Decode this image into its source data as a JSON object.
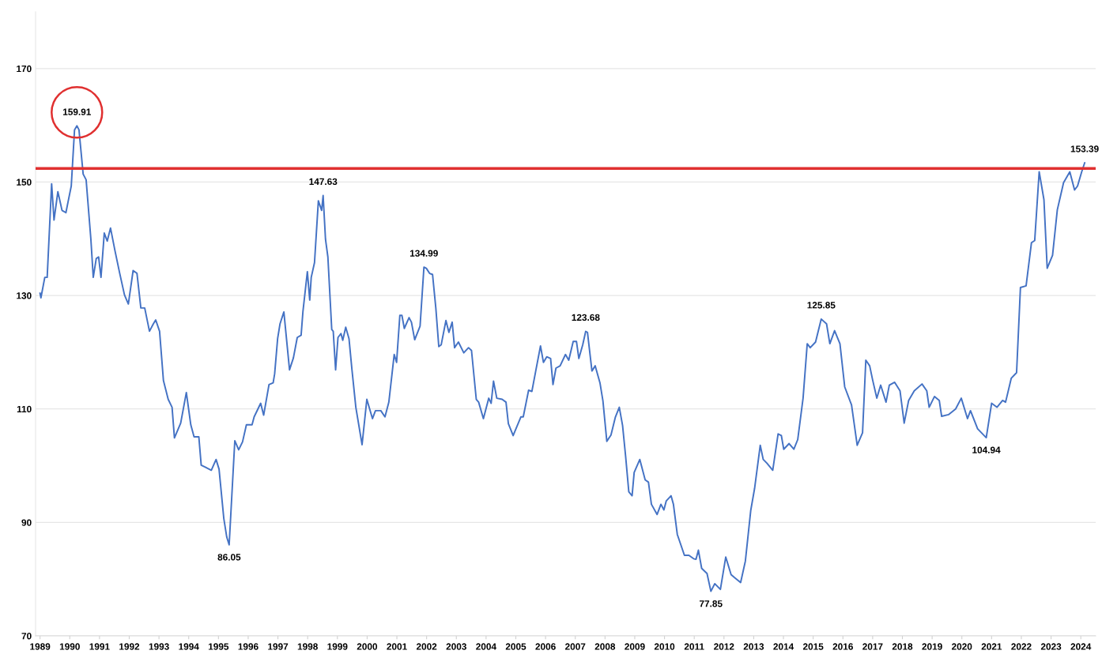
{
  "chart_data": {
    "type": "line",
    "xlim": [
      1988.85,
      2024.5
    ],
    "ylim": [
      70,
      180
    ],
    "xticks": [
      1989,
      1990,
      1991,
      1992,
      1993,
      1994,
      1995,
      1996,
      1997,
      1998,
      1999,
      2000,
      2001,
      2002,
      2003,
      2004,
      2005,
      2006,
      2007,
      2008,
      2009,
      2010,
      2011,
      2012,
      2013,
      2014,
      2015,
      2016,
      2017,
      2018,
      2019,
      2020,
      2021,
      2022,
      2023,
      2024
    ],
    "yticks": [
      70,
      90,
      110,
      130,
      150,
      170
    ],
    "grid": "y",
    "marker": "none",
    "line_style": "solid",
    "series": [
      {
        "color": "#4472c4",
        "x": [
          1989.0,
          1989.03,
          1989.16,
          1989.24,
          1989.39,
          1989.47,
          1989.6,
          1989.74,
          1989.87,
          1989.95,
          1990.05,
          1990.16,
          1990.24,
          1990.31,
          1990.45,
          1990.55,
          1990.71,
          1990.79,
          1990.89,
          1990.97,
          1991.05,
          1991.16,
          1991.26,
          1991.37,
          1991.52,
          1991.68,
          1991.84,
          1991.97,
          1992.13,
          1992.26,
          1992.39,
          1992.52,
          1992.68,
          1992.81,
          1992.89,
          1993.02,
          1993.15,
          1993.31,
          1993.44,
          1993.52,
          1993.73,
          1993.92,
          1994.07,
          1994.18,
          1994.34,
          1994.42,
          1994.57,
          1994.76,
          1994.92,
          1995.02,
          1995.18,
          1995.28,
          1995.36,
          1995.55,
          1995.68,
          1995.81,
          1995.94,
          1996.13,
          1996.2,
          1996.42,
          1996.52,
          1996.7,
          1996.84,
          1996.89,
          1996.99,
          1997.07,
          1997.2,
          1997.39,
          1997.52,
          1997.65,
          1997.78,
          1997.84,
          1997.99,
          1998.07,
          1998.12,
          1998.23,
          1998.36,
          1998.47,
          1998.52,
          1998.6,
          1998.68,
          1998.81,
          1998.86,
          1998.94,
          1999.02,
          1999.12,
          1999.18,
          1999.28,
          1999.39,
          1999.49,
          1999.62,
          1999.83,
          1999.99,
          2000.18,
          2000.28,
          2000.46,
          2000.6,
          2000.73,
          2000.91,
          2000.99,
          2001.1,
          2001.17,
          2001.25,
          2001.41,
          2001.49,
          2001.6,
          2001.78,
          2001.91,
          2001.99,
          2002.1,
          2002.2,
          2002.31,
          2002.41,
          2002.49,
          2002.65,
          2002.75,
          2002.86,
          2002.94,
          2003.07,
          2003.25,
          2003.41,
          2003.51,
          2003.67,
          2003.75,
          2003.91,
          2004.09,
          2004.17,
          2004.25,
          2004.36,
          2004.54,
          2004.67,
          2004.75,
          2004.91,
          2005.17,
          2005.25,
          2005.43,
          2005.54,
          2005.67,
          2005.83,
          2005.93,
          2006.04,
          2006.17,
          2006.25,
          2006.35,
          2006.49,
          2006.67,
          2006.78,
          2006.93,
          2007.04,
          2007.12,
          2007.25,
          2007.35,
          2007.41,
          2007.56,
          2007.67,
          2007.83,
          2007.93,
          2008.06,
          2008.2,
          2008.35,
          2008.48,
          2008.59,
          2008.69,
          2008.8,
          2008.91,
          2008.98,
          2009.17,
          2009.35,
          2009.46,
          2009.56,
          2009.75,
          2009.88,
          2009.98,
          2010.06,
          2010.22,
          2010.3,
          2010.43,
          2010.67,
          2010.82,
          2010.98,
          2011.06,
          2011.14,
          2011.25,
          2011.43,
          2011.56,
          2011.69,
          2011.88,
          2012.06,
          2012.24,
          2012.35,
          2012.56,
          2012.72,
          2012.9,
          2013.03,
          2013.22,
          2013.32,
          2013.45,
          2013.64,
          2013.82,
          2013.93,
          2014.01,
          2014.19,
          2014.35,
          2014.48,
          2014.66,
          2014.8,
          2014.9,
          2015.08,
          2015.27,
          2015.45,
          2015.56,
          2015.72,
          2015.9,
          2016.06,
          2016.29,
          2016.48,
          2016.66,
          2016.77,
          2016.9,
          2017.0,
          2017.14,
          2017.27,
          2017.45,
          2017.56,
          2017.74,
          2017.92,
          2018.06,
          2018.21,
          2018.4,
          2018.66,
          2018.82,
          2018.9,
          2019.08,
          2019.24,
          2019.32,
          2019.55,
          2019.79,
          2019.98,
          2020.19,
          2020.29,
          2020.53,
          2020.82,
          2021.0,
          2021.18,
          2021.37,
          2021.47,
          2021.66,
          2021.84,
          2021.97,
          2022.16,
          2022.34,
          2022.45,
          2022.6,
          2022.76,
          2022.87,
          2023.05,
          2023.21,
          2023.42,
          2023.63,
          2023.79,
          2023.89,
          2024.03,
          2024.13
        ],
        "values": [
          130.4,
          129.6,
          133.2,
          133.2,
          149.7,
          143.3,
          148.3,
          145.0,
          144.6,
          146.7,
          149.3,
          159.2,
          159.91,
          159.2,
          151.4,
          150.4,
          139.9,
          133.2,
          136.5,
          136.8,
          133.2,
          141.0,
          139.6,
          141.9,
          137.9,
          133.9,
          130.1,
          128.5,
          134.4,
          133.9,
          127.8,
          127.8,
          123.7,
          125.0,
          125.7,
          123.7,
          115.0,
          111.7,
          110.3,
          104.9,
          107.5,
          112.9,
          107.2,
          105.1,
          105.1,
          100.1,
          99.7,
          99.2,
          101.1,
          99.4,
          90.7,
          87.4,
          86.05,
          104.4,
          102.8,
          104.2,
          107.2,
          107.2,
          108.6,
          111.0,
          108.9,
          114.3,
          114.6,
          116.2,
          122.4,
          125.0,
          127.1,
          116.9,
          119.0,
          122.6,
          123.0,
          127.1,
          134.2,
          129.2,
          133.2,
          135.8,
          146.7,
          145.0,
          147.63,
          139.9,
          136.8,
          124.0,
          123.7,
          116.9,
          122.6,
          123.3,
          122.1,
          124.4,
          122.4,
          116.9,
          110.3,
          103.7,
          111.7,
          108.3,
          109.7,
          109.7,
          108.6,
          111.2,
          119.6,
          118.2,
          126.5,
          126.5,
          124.2,
          126.1,
          125.3,
          122.2,
          124.6,
          134.99,
          134.8,
          133.9,
          133.7,
          127.8,
          121.0,
          121.3,
          125.6,
          123.5,
          125.3,
          120.8,
          121.8,
          119.9,
          120.8,
          120.3,
          111.7,
          111.2,
          108.3,
          111.9,
          111.0,
          114.9,
          111.9,
          111.7,
          111.2,
          107.4,
          105.3,
          108.6,
          108.6,
          113.3,
          113.1,
          116.7,
          121.1,
          118.2,
          119.2,
          118.9,
          114.3,
          117.2,
          117.6,
          119.6,
          118.6,
          121.9,
          121.9,
          118.9,
          121.3,
          123.68,
          123.5,
          116.7,
          117.6,
          114.6,
          111.4,
          104.3,
          105.4,
          108.6,
          110.3,
          107.1,
          101.8,
          95.4,
          94.7,
          98.8,
          101.1,
          97.5,
          97.1,
          93.2,
          91.4,
          93.2,
          92.2,
          93.8,
          94.7,
          93.2,
          87.9,
          84.2,
          84.2,
          83.6,
          83.5,
          85.1,
          81.9,
          81.0,
          77.85,
          79.2,
          78.2,
          83.9,
          80.8,
          80.3,
          79.4,
          83.2,
          92.1,
          96.0,
          103.6,
          101.1,
          100.4,
          99.2,
          105.6,
          105.3,
          102.9,
          103.9,
          102.9,
          104.6,
          111.9,
          121.5,
          120.8,
          121.8,
          125.85,
          125.0,
          121.5,
          123.8,
          121.5,
          113.9,
          110.7,
          103.6,
          105.8,
          118.6,
          117.6,
          115.1,
          111.9,
          114.2,
          111.2,
          114.2,
          114.7,
          113.2,
          107.5,
          111.5,
          113.2,
          114.4,
          113.2,
          110.3,
          112.2,
          111.5,
          108.7,
          109.0,
          110.0,
          111.9,
          108.3,
          109.7,
          106.5,
          104.94,
          111.0,
          110.3,
          111.5,
          111.2,
          115.4,
          116.4,
          131.4,
          131.7,
          139.3,
          139.7,
          151.8,
          146.9,
          134.8,
          137.1,
          145.1,
          149.9,
          151.8,
          148.6,
          149.3,
          151.8,
          153.39
        ]
      }
    ],
    "ref_lines": [
      {
        "axis": "y",
        "value": 152.4,
        "color": "#e03030",
        "line_style": "solid"
      }
    ],
    "annotations": [
      {
        "text": "159.91",
        "x": 1990.24,
        "y": 159.91
      },
      {
        "text": "147.63",
        "x": 1998.52,
        "y": 147.63
      },
      {
        "text": "86.05",
        "x": 1995.36,
        "y": 86.05
      },
      {
        "text": "134.99",
        "x": 2001.91,
        "y": 134.99
      },
      {
        "text": "123.68",
        "x": 2007.35,
        "y": 123.68
      },
      {
        "text": "77.85",
        "x": 2011.56,
        "y": 77.85
      },
      {
        "text": "125.85",
        "x": 2015.27,
        "y": 125.85
      },
      {
        "text": "104.94",
        "x": 2020.82,
        "y": 104.94
      },
      {
        "text": "153.39",
        "x": 2024.13,
        "y": 153.39
      }
    ]
  }
}
